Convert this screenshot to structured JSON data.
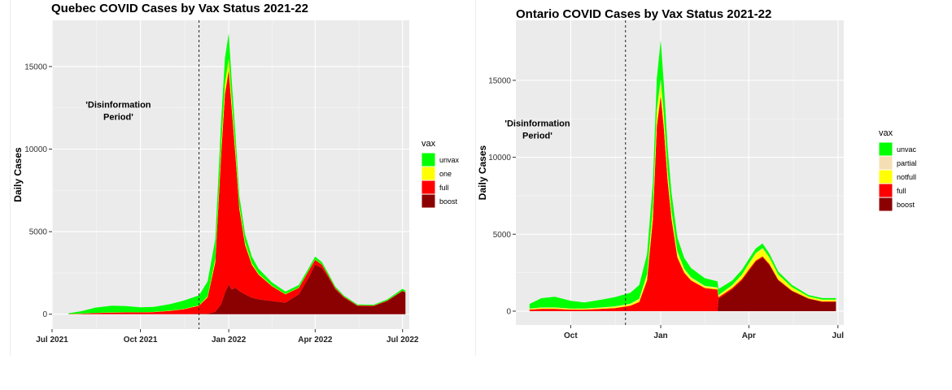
{
  "chart_data": [
    {
      "type": "area",
      "title": "Quebec COVID Cases by Vax Status 2021-22",
      "xlabel": "",
      "ylabel": "Daily Cases",
      "ylim": [
        -900,
        17800
      ],
      "xlim": [
        "2021-07-01",
        "2022-07-08"
      ],
      "x_ticks": [
        "2021-07-01",
        "2021-10-01",
        "2022-01-01",
        "2022-04-01",
        "2022-07-01"
      ],
      "x_tick_labels": [
        "Jul 2021",
        "Oct 2021",
        "Jan 2022",
        "Apr 2022",
        "Jul 2022"
      ],
      "y_ticks": [
        0,
        5000,
        10000,
        15000
      ],
      "y_tick_labels": [
        "0",
        "5000",
        "10000",
        "15000"
      ],
      "grid": true,
      "legend": {
        "title": "vax",
        "position": "right",
        "entries": [
          "unvax",
          "one",
          "full",
          "boost"
        ]
      },
      "colors": {
        "unvax": "#00ff00",
        "one": "#ffff00",
        "full": "#ff0000",
        "boost": "#8b0000"
      },
      "vline": {
        "x": "2021-12-01",
        "style": "dashed"
      },
      "annotation": {
        "text_lines": [
          "'Disinformation",
          "Period'"
        ],
        "x": "2021-09-08",
        "y": 12500
      },
      "x": [
        "2021-07-18",
        "2021-08-01",
        "2021-08-15",
        "2021-09-01",
        "2021-09-15",
        "2021-10-01",
        "2021-10-15",
        "2021-11-01",
        "2021-11-15",
        "2021-12-01",
        "2021-12-10",
        "2021-12-18",
        "2021-12-24",
        "2021-12-28",
        "2022-01-01",
        "2022-01-04",
        "2022-01-08",
        "2022-01-12",
        "2022-01-18",
        "2022-01-25",
        "2022-02-01",
        "2022-02-15",
        "2022-03-01",
        "2022-03-15",
        "2022-03-25",
        "2022-04-01",
        "2022-04-08",
        "2022-04-15",
        "2022-04-22",
        "2022-05-01",
        "2022-05-15",
        "2022-06-01",
        "2022-06-15",
        "2022-07-01",
        "2022-07-04"
      ],
      "series": [
        {
          "name": "boost",
          "values": [
            0,
            0,
            0,
            0,
            0,
            0,
            0,
            0,
            0,
            10,
            30,
            150,
            600,
            1300,
            1800,
            1500,
            1600,
            1400,
            1200,
            1000,
            900,
            800,
            700,
            1200,
            2200,
            3000,
            2800,
            2200,
            1500,
            1000,
            500,
            500,
            800,
            1400,
            1300
          ]
        },
        {
          "name": "full",
          "values": [
            10,
            30,
            70,
            100,
            110,
            110,
            130,
            200,
            300,
            500,
            1000,
            3000,
            9000,
            12000,
            13000,
            11000,
            8000,
            5000,
            3000,
            2000,
            1500,
            900,
            500,
            400,
            400,
            300,
            200,
            100,
            80,
            50,
            30,
            20,
            20,
            30,
            30
          ]
        },
        {
          "name": "one",
          "values": [
            5,
            8,
            10,
            10,
            10,
            10,
            10,
            15,
            20,
            30,
            60,
            200,
            500,
            600,
            700,
            500,
            400,
            200,
            150,
            100,
            60,
            30,
            20,
            15,
            15,
            15,
            10,
            10,
            8,
            5,
            5,
            5,
            5,
            5,
            5
          ]
        },
        {
          "name": "unvax",
          "values": [
            40,
            150,
            320,
            400,
            380,
            300,
            300,
            400,
            500,
            600,
            900,
            1200,
            1500,
            1600,
            1500,
            1200,
            900,
            600,
            500,
            400,
            300,
            200,
            150,
            150,
            150,
            180,
            150,
            120,
            90,
            70,
            50,
            50,
            70,
            100,
            100
          ]
        }
      ]
    },
    {
      "type": "area",
      "title": "Ontario COVID Cases by Vax Status 2021-22",
      "xlabel": "",
      "ylabel": "Daily Cases",
      "ylim": [
        -900,
        18900
      ],
      "xlim": [
        "2021-08-06",
        "2022-07-07"
      ],
      "x_ticks": [
        "2021-10-01",
        "2022-01-01",
        "2022-04-01",
        "2022-07-01"
      ],
      "x_tick_labels": [
        "Oct",
        "Jan",
        "Apr",
        "Jul"
      ],
      "y_ticks": [
        0,
        5000,
        10000,
        15000
      ],
      "y_tick_labels": [
        "0",
        "5000",
        "10000",
        "15000"
      ],
      "grid": true,
      "legend": {
        "title": "vax",
        "position": "right",
        "entries": [
          "unvac",
          "partial",
          "notfull",
          "full",
          "boost"
        ]
      },
      "colors": {
        "unvac": "#00ff00",
        "partial": "#f5deb3",
        "notfull": "#ffff00",
        "full": "#ff0000",
        "boost": "#8b0000"
      },
      "vline": {
        "x": "2021-11-26",
        "style": "dashed"
      },
      "annotation": {
        "text_lines": [
          "'Disinformation",
          "Period'"
        ],
        "x": "2021-08-28",
        "y": 12000
      },
      "x": [
        "2021-08-20",
        "2021-09-01",
        "2021-09-15",
        "2021-10-01",
        "2021-10-15",
        "2021-11-01",
        "2021-11-15",
        "2021-12-01",
        "2021-12-10",
        "2021-12-18",
        "2021-12-24",
        "2021-12-28",
        "2022-01-01",
        "2022-01-04",
        "2022-01-08",
        "2022-01-12",
        "2022-01-18",
        "2022-01-25",
        "2022-02-01",
        "2022-02-15",
        "2022-02-28",
        "2022-03-01",
        "2022-03-15",
        "2022-03-25",
        "2022-04-01",
        "2022-04-08",
        "2022-04-15",
        "2022-04-22",
        "2022-05-01",
        "2022-05-15",
        "2022-06-01",
        "2022-06-15",
        "2022-06-29"
      ],
      "series": [
        {
          "name": "boost",
          "values": [
            0,
            0,
            0,
            0,
            0,
            0,
            0,
            0,
            0,
            0,
            0,
            0,
            0,
            0,
            0,
            0,
            0,
            0,
            0,
            0,
            0,
            800,
            1400,
            2000,
            2600,
            3200,
            3500,
            3000,
            2000,
            1300,
            800,
            600,
            600
          ]
        },
        {
          "name": "full",
          "values": [
            100,
            150,
            150,
            100,
            100,
            150,
            200,
            350,
            600,
            2000,
            6000,
            12000,
            14000,
            12000,
            8500,
            6000,
            3500,
            2500,
            2000,
            1500,
            1400,
            100,
            100,
            100,
            100,
            80,
            60,
            60,
            50,
            40,
            30,
            30,
            30
          ]
        },
        {
          "name": "notfull",
          "values": [
            50,
            60,
            60,
            50,
            50,
            60,
            80,
            100,
            150,
            300,
            600,
            800,
            800,
            700,
            500,
            400,
            300,
            200,
            150,
            100,
            100,
            100,
            150,
            250,
            350,
            450,
            500,
            400,
            300,
            200,
            100,
            100,
            100
          ]
        },
        {
          "name": "partial",
          "values": [
            20,
            30,
            30,
            20,
            20,
            30,
            30,
            40,
            50,
            100,
            200,
            300,
            300,
            200,
            150,
            100,
            80,
            60,
            50,
            40,
            40,
            40,
            40,
            40,
            40,
            40,
            40,
            30,
            30,
            20,
            20,
            20,
            20
          ]
        },
        {
          "name": "unvac",
          "values": [
            300,
            600,
            700,
            500,
            400,
            500,
            600,
            700,
            900,
            1300,
            1600,
            2000,
            2500,
            2000,
            1500,
            1200,
            900,
            700,
            600,
            500,
            400,
            400,
            300,
            300,
            300,
            300,
            300,
            250,
            200,
            150,
            100,
            100,
            100
          ]
        }
      ]
    }
  ]
}
